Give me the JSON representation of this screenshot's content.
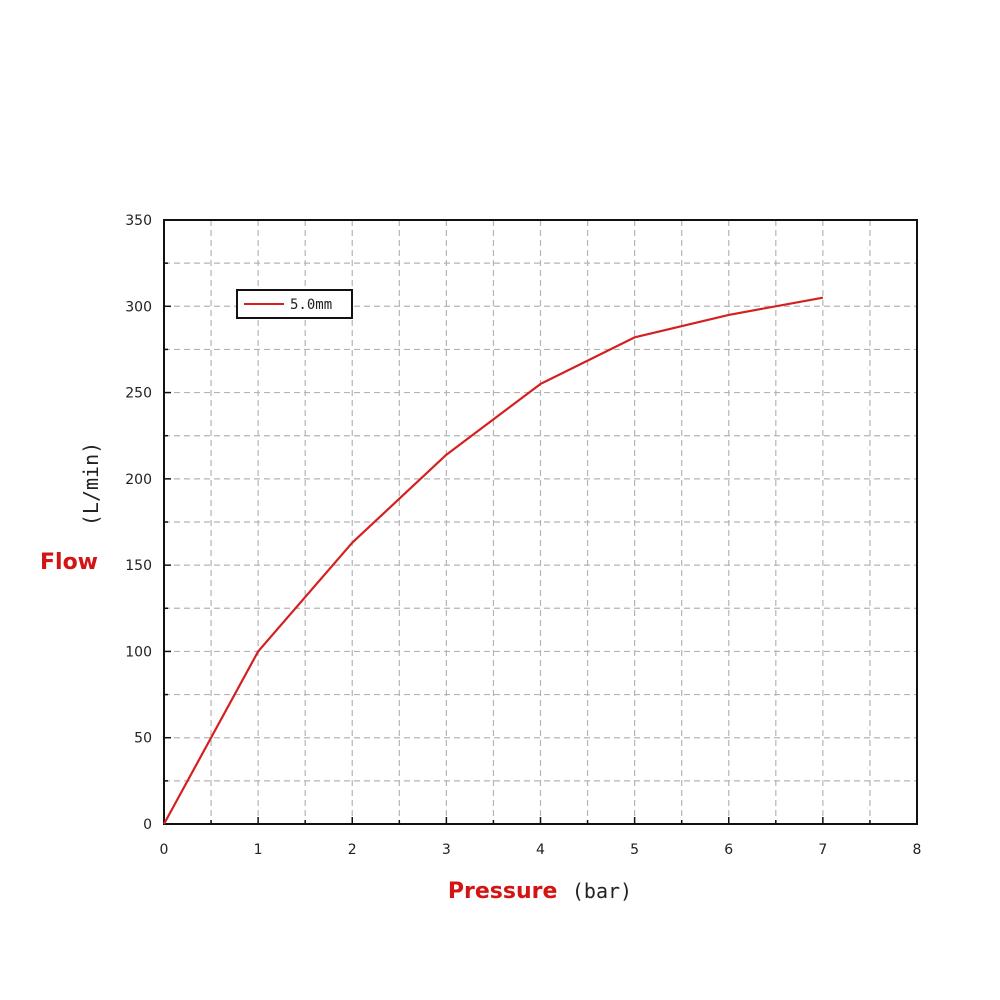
{
  "chart_data": {
    "type": "line",
    "title": "",
    "xlabel": "Pressure",
    "xlabel_unit": "(bar)",
    "ylabel": "Flow",
    "ylabel_unit": "(L/min)",
    "xlim": [
      0,
      8
    ],
    "ylim": [
      0,
      350
    ],
    "x_ticks": [
      0,
      1,
      2,
      3,
      4,
      5,
      6,
      7,
      8
    ],
    "y_ticks": [
      0,
      50,
      100,
      150,
      200,
      250,
      300,
      350
    ],
    "grid": true,
    "legend_position": "top-left",
    "series": [
      {
        "name": "5.0mm",
        "color": "#d42020",
        "x": [
          0,
          1,
          2,
          3,
          4,
          5,
          6,
          7
        ],
        "y": [
          0,
          100,
          163,
          214,
          255,
          282,
          295,
          305
        ]
      }
    ]
  }
}
